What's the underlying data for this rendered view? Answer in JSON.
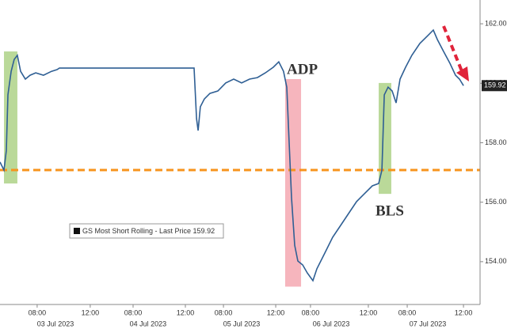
{
  "chart_data": {
    "type": "line",
    "series": [
      {
        "name": "GS Most Short Rolling - Last Price 159.92",
        "color": "#2f5f94",
        "x": [
          0,
          0.3,
          0.48,
          0.6,
          0.84,
          1.07,
          1.31,
          1.55,
          1.91,
          2.27,
          2.69,
          3.28,
          3.88,
          4.3,
          4.48,
          14.63,
          14.81,
          14.93,
          15.1,
          15.4,
          15.82,
          16.42,
          17.01,
          17.61,
          18.21,
          18.81,
          19.4,
          20,
          20.6,
          21.01,
          21.37,
          21.61,
          21.79,
          21.97,
          22.21,
          22.45,
          22.81,
          23.16,
          23.58,
          23.88,
          24.48,
          25.07,
          25.67,
          26.27,
          26.87,
          27.46,
          28.06,
          28.54,
          28.78,
          28.96,
          29.25,
          29.55,
          29.85,
          30.15,
          30.57,
          31.04,
          31.64,
          32.24,
          32.66,
          32.96,
          33.43,
          33.91,
          34.33,
          34.63,
          34.93
        ],
        "values": [
          157.35,
          157.08,
          157.74,
          159.61,
          160.4,
          160.8,
          160.94,
          160.4,
          160.14,
          160.27,
          160.35,
          160.27,
          160.4,
          160.46,
          160.51,
          160.51,
          158.81,
          158.41,
          159.21,
          159.47,
          159.66,
          159.74,
          160.01,
          160.14,
          160.01,
          160.14,
          160.19,
          160.35,
          160.54,
          160.72,
          160.4,
          159.87,
          158.01,
          156.15,
          154.55,
          154.02,
          153.89,
          153.62,
          153.36,
          153.76,
          154.29,
          154.82,
          155.22,
          155.62,
          156.02,
          156.28,
          156.55,
          156.63,
          157.08,
          159.61,
          159.87,
          159.74,
          159.34,
          160.14,
          160.54,
          160.94,
          161.34,
          161.6,
          161.79,
          161.47,
          161.07,
          160.67,
          160.27,
          160.14,
          159.92
        ]
      }
    ],
    "xlim": [
      0,
      36.18
    ],
    "xticks": [
      {
        "value": 2.8,
        "label": "08:00"
      },
      {
        "value": 6.8,
        "label": "12:00"
      },
      {
        "value": 10.03,
        "label": "08:00"
      },
      {
        "value": 13.97,
        "label": "12:00"
      },
      {
        "value": 16.84,
        "label": "08:00"
      },
      {
        "value": 20.78,
        "label": "12:00"
      },
      {
        "value": 23.4,
        "label": "08:00"
      },
      {
        "value": 27.76,
        "label": "12:00"
      },
      {
        "value": 30.69,
        "label": "08:00"
      },
      {
        "value": 34.93,
        "label": "12:00"
      }
    ],
    "date_labels": [
      {
        "value": 4.18,
        "label": "03 Jul 2023"
      },
      {
        "value": 11.16,
        "label": "04 Jul 2023"
      },
      {
        "value": 18.21,
        "label": "05 Jul 2023"
      },
      {
        "value": 24.96,
        "label": "06 Jul 2023"
      },
      {
        "value": 32.24,
        "label": "07 Jul 2023"
      }
    ],
    "ylim": [
      152.56,
      162.8
    ],
    "yticks": [
      {
        "value": 154,
        "label": "154.00"
      },
      {
        "value": 156,
        "label": "156.00"
      },
      {
        "value": 158,
        "label": "158.00"
      },
      {
        "value": 160,
        "label": "160.00"
      },
      {
        "value": 162,
        "label": "162.00"
      }
    ],
    "reference_line": {
      "value": 157.08,
      "color": "#f7941d"
    },
    "highlights": [
      {
        "x": [
          0.3,
          1.31
        ],
        "y": [
          156.63,
          161.07
        ],
        "color": "#a9cf7f"
      },
      {
        "x": [
          21.49,
          22.69
        ],
        "y": [
          153.16,
          160.14
        ],
        "color": "#f4a3ad"
      },
      {
        "x": [
          28.54,
          29.49
        ],
        "y": [
          156.28,
          160.01
        ],
        "color": "#a9cf7f"
      }
    ],
    "annotations": [
      {
        "text": "ADP",
        "color": "#e0243a"
      },
      {
        "text": "BLS",
        "color": "#5a9a2a"
      }
    ]
  }
}
